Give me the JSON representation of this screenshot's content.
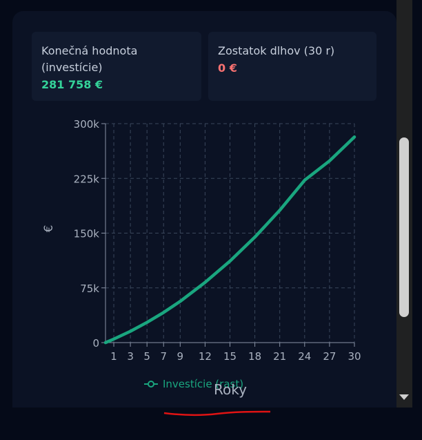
{
  "cards": [
    {
      "label": "Konečná hodnota (investície)",
      "value": "281 758 €",
      "color": "#34d399"
    },
    {
      "label": "Zostatok dlhov (30 r)",
      "value": "0 €",
      "color": "#f87171"
    }
  ],
  "chart_data": {
    "type": "line",
    "ylabel": "€",
    "xlabel": "Roky",
    "ylim": [
      0,
      300000
    ],
    "yticks": [
      0,
      75000,
      150000,
      225000,
      300000
    ],
    "ytick_labels": [
      "0",
      "75k",
      "150k",
      "225k",
      "300k"
    ],
    "xlim": [
      0,
      30
    ],
    "xticks": [
      1,
      3,
      5,
      7,
      9,
      12,
      15,
      18,
      21,
      24,
      27,
      30
    ],
    "grid": true,
    "legend_position": "bottom",
    "series": [
      {
        "name": "Investície (rast)",
        "color": "#1aa67f",
        "x": [
          0,
          1,
          3,
          5,
          7,
          9,
          12,
          15,
          18,
          21,
          24,
          27,
          30
        ],
        "y": [
          0,
          4800,
          15500,
          27700,
          41300,
          56500,
          82500,
          111700,
          144500,
          181300,
          222500,
          249000,
          281758
        ]
      }
    ]
  }
}
